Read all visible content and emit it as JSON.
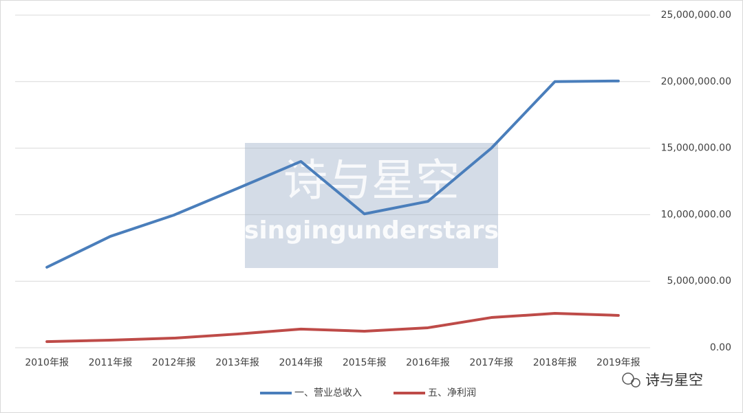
{
  "chart_data": {
    "type": "line",
    "categories": [
      "2010年报",
      "2011年报",
      "2012年报",
      "2013年报",
      "2014年报",
      "2015年报",
      "2016年报",
      "2017年报",
      "2018年报",
      "2019年报"
    ],
    "series": [
      {
        "name": "一、营业总收入",
        "color": "#4a7ebb",
        "values": [
          6050000,
          8370000,
          9970000,
          11970000,
          14000000,
          10060000,
          11000000,
          15000000,
          20000000,
          20050000
        ]
      },
      {
        "name": "五、净利润",
        "color": "#be4b48",
        "values": [
          460000,
          570000,
          720000,
          1030000,
          1400000,
          1240000,
          1500000,
          2270000,
          2580000,
          2430000
        ]
      }
    ],
    "ylim": [
      0,
      25000000
    ],
    "yticks": [
      {
        "value": 0,
        "label": "0.00"
      },
      {
        "value": 5000000,
        "label": "5,000,000.00"
      },
      {
        "value": 10000000,
        "label": "10,000,000.00"
      },
      {
        "value": 15000000,
        "label": "15,000,000.00"
      },
      {
        "value": 20000000,
        "label": "20,000,000.00"
      },
      {
        "value": 25000000,
        "label": "25,000,000.00"
      }
    ],
    "grid": true,
    "legend": "bottom"
  },
  "watermark": {
    "title": "诗与星空",
    "subtitle": "singingunderstars"
  },
  "logo": "诗与星空"
}
